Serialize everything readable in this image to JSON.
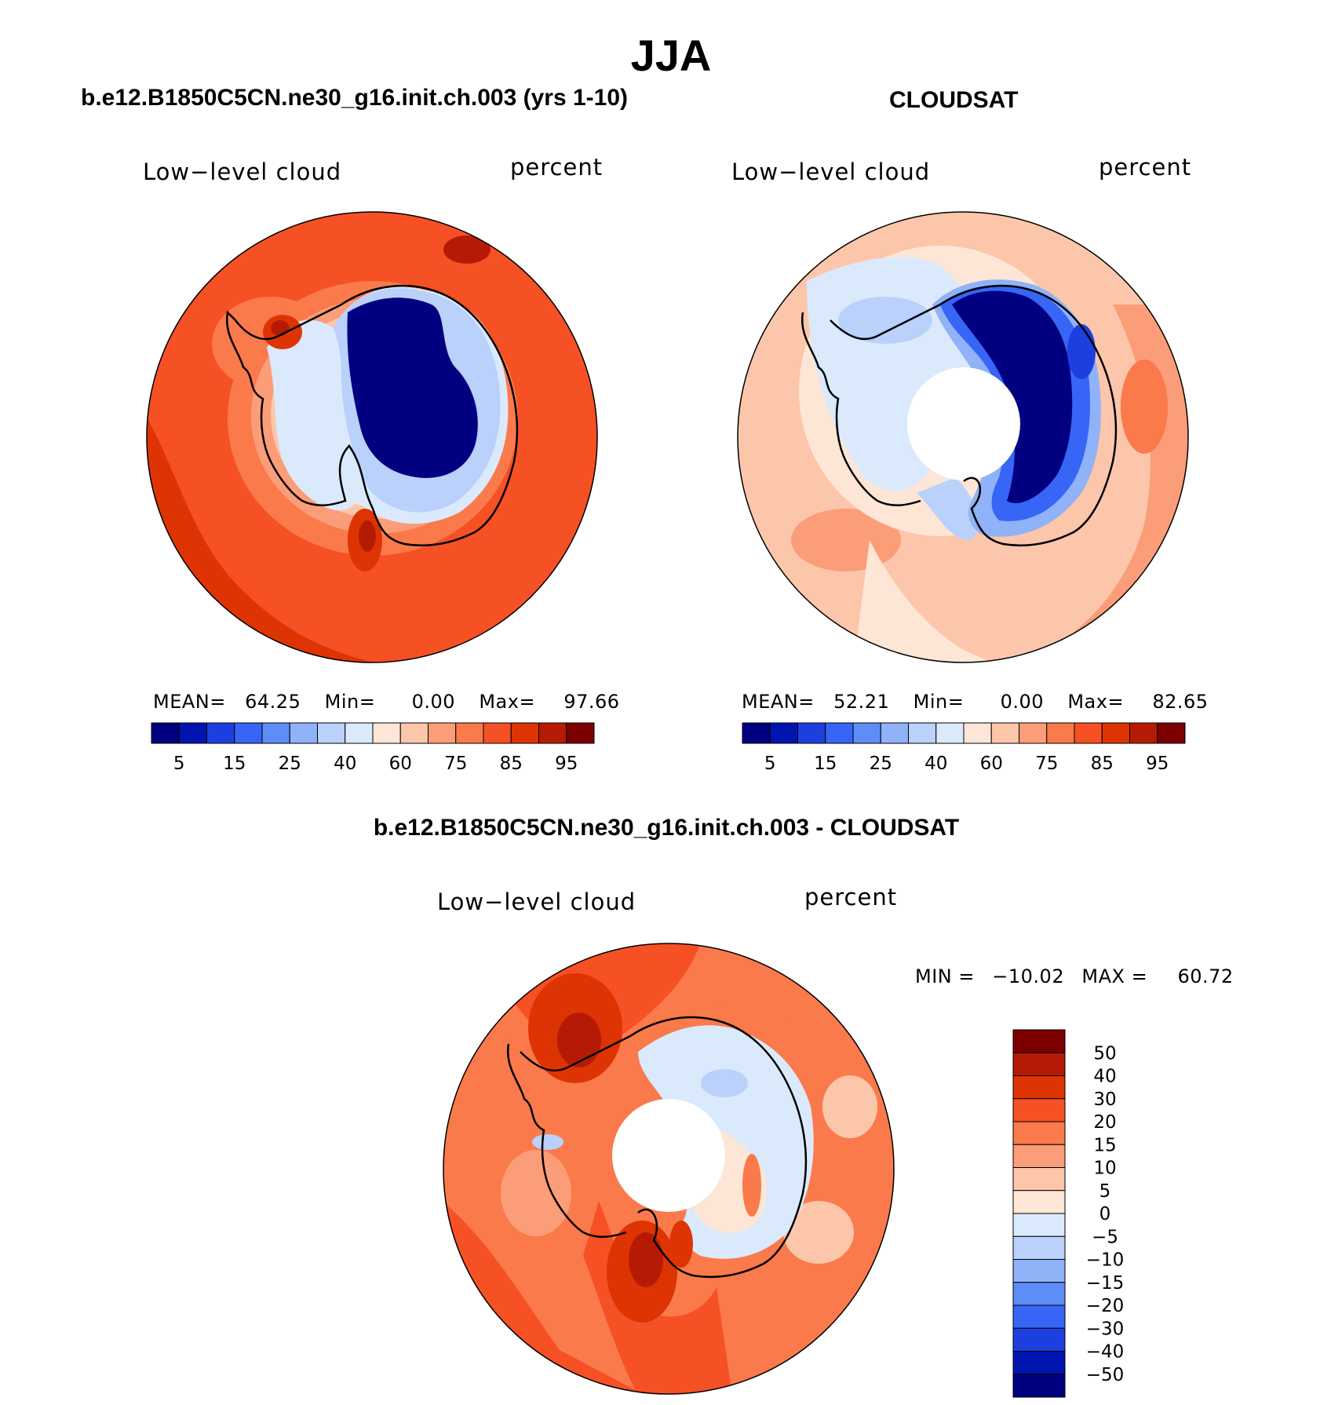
{
  "title": "JJA",
  "panels": {
    "model": {
      "title": "b.e12.B1850C5CN.ne30_g16.init.ch.003 (yrs 1-10)",
      "variable": "Low−level cloud",
      "units": "percent",
      "stats": {
        "mean_label": "MEAN=",
        "mean": "64.25",
        "min_label": "Min=",
        "min": "0.00",
        "max_label": "Max=",
        "max": "97.66"
      }
    },
    "obs": {
      "title": "CLOUDSAT",
      "variable": "Low−level cloud",
      "units": "percent",
      "stats": {
        "mean_label": "MEAN=",
        "mean": "52.21",
        "min_label": "Min=",
        "min": "0.00",
        "max_label": "Max=",
        "max": "82.65"
      }
    },
    "diff": {
      "title": "b.e12.B1850C5CN.ne30_g16.init.ch.003 - CLOUDSAT",
      "variable": "Low−level cloud",
      "units": "percent",
      "stats": {
        "min_label": "MIN =",
        "min": "−10.02",
        "max_label": "MAX =",
        "max": "60.72"
      }
    }
  },
  "colorbar_top": {
    "colors": [
      "#000080",
      "#0015b0",
      "#1e3fe0",
      "#3765f5",
      "#5e8df7",
      "#8fb2f8",
      "#b9d1fb",
      "#dbe9fc",
      "#fde6d6",
      "#fcc6ab",
      "#fb9d79",
      "#fa7a4b",
      "#f65025",
      "#de3404",
      "#b51b04",
      "#7d0000"
    ],
    "tick_labels": [
      "5",
      "15",
      "25",
      "40",
      "60",
      "75",
      "85",
      "95"
    ]
  },
  "colorbar_diff": {
    "colors_top_to_bottom": [
      "#7d0000",
      "#b51b04",
      "#de3404",
      "#f65025",
      "#fa7a4b",
      "#fb9d79",
      "#fcc6ab",
      "#fde6d6",
      "#dbe9fc",
      "#b9d1fb",
      "#8fb2f8",
      "#5e8df7",
      "#3765f5",
      "#1e3fe0",
      "#0015b0",
      "#000080"
    ],
    "tick_labels": [
      "50",
      "40",
      "30",
      "20",
      "15",
      "10",
      "5",
      "0",
      "−5",
      "−10",
      "−15",
      "−20",
      "−30",
      "−40",
      "−50"
    ]
  }
}
